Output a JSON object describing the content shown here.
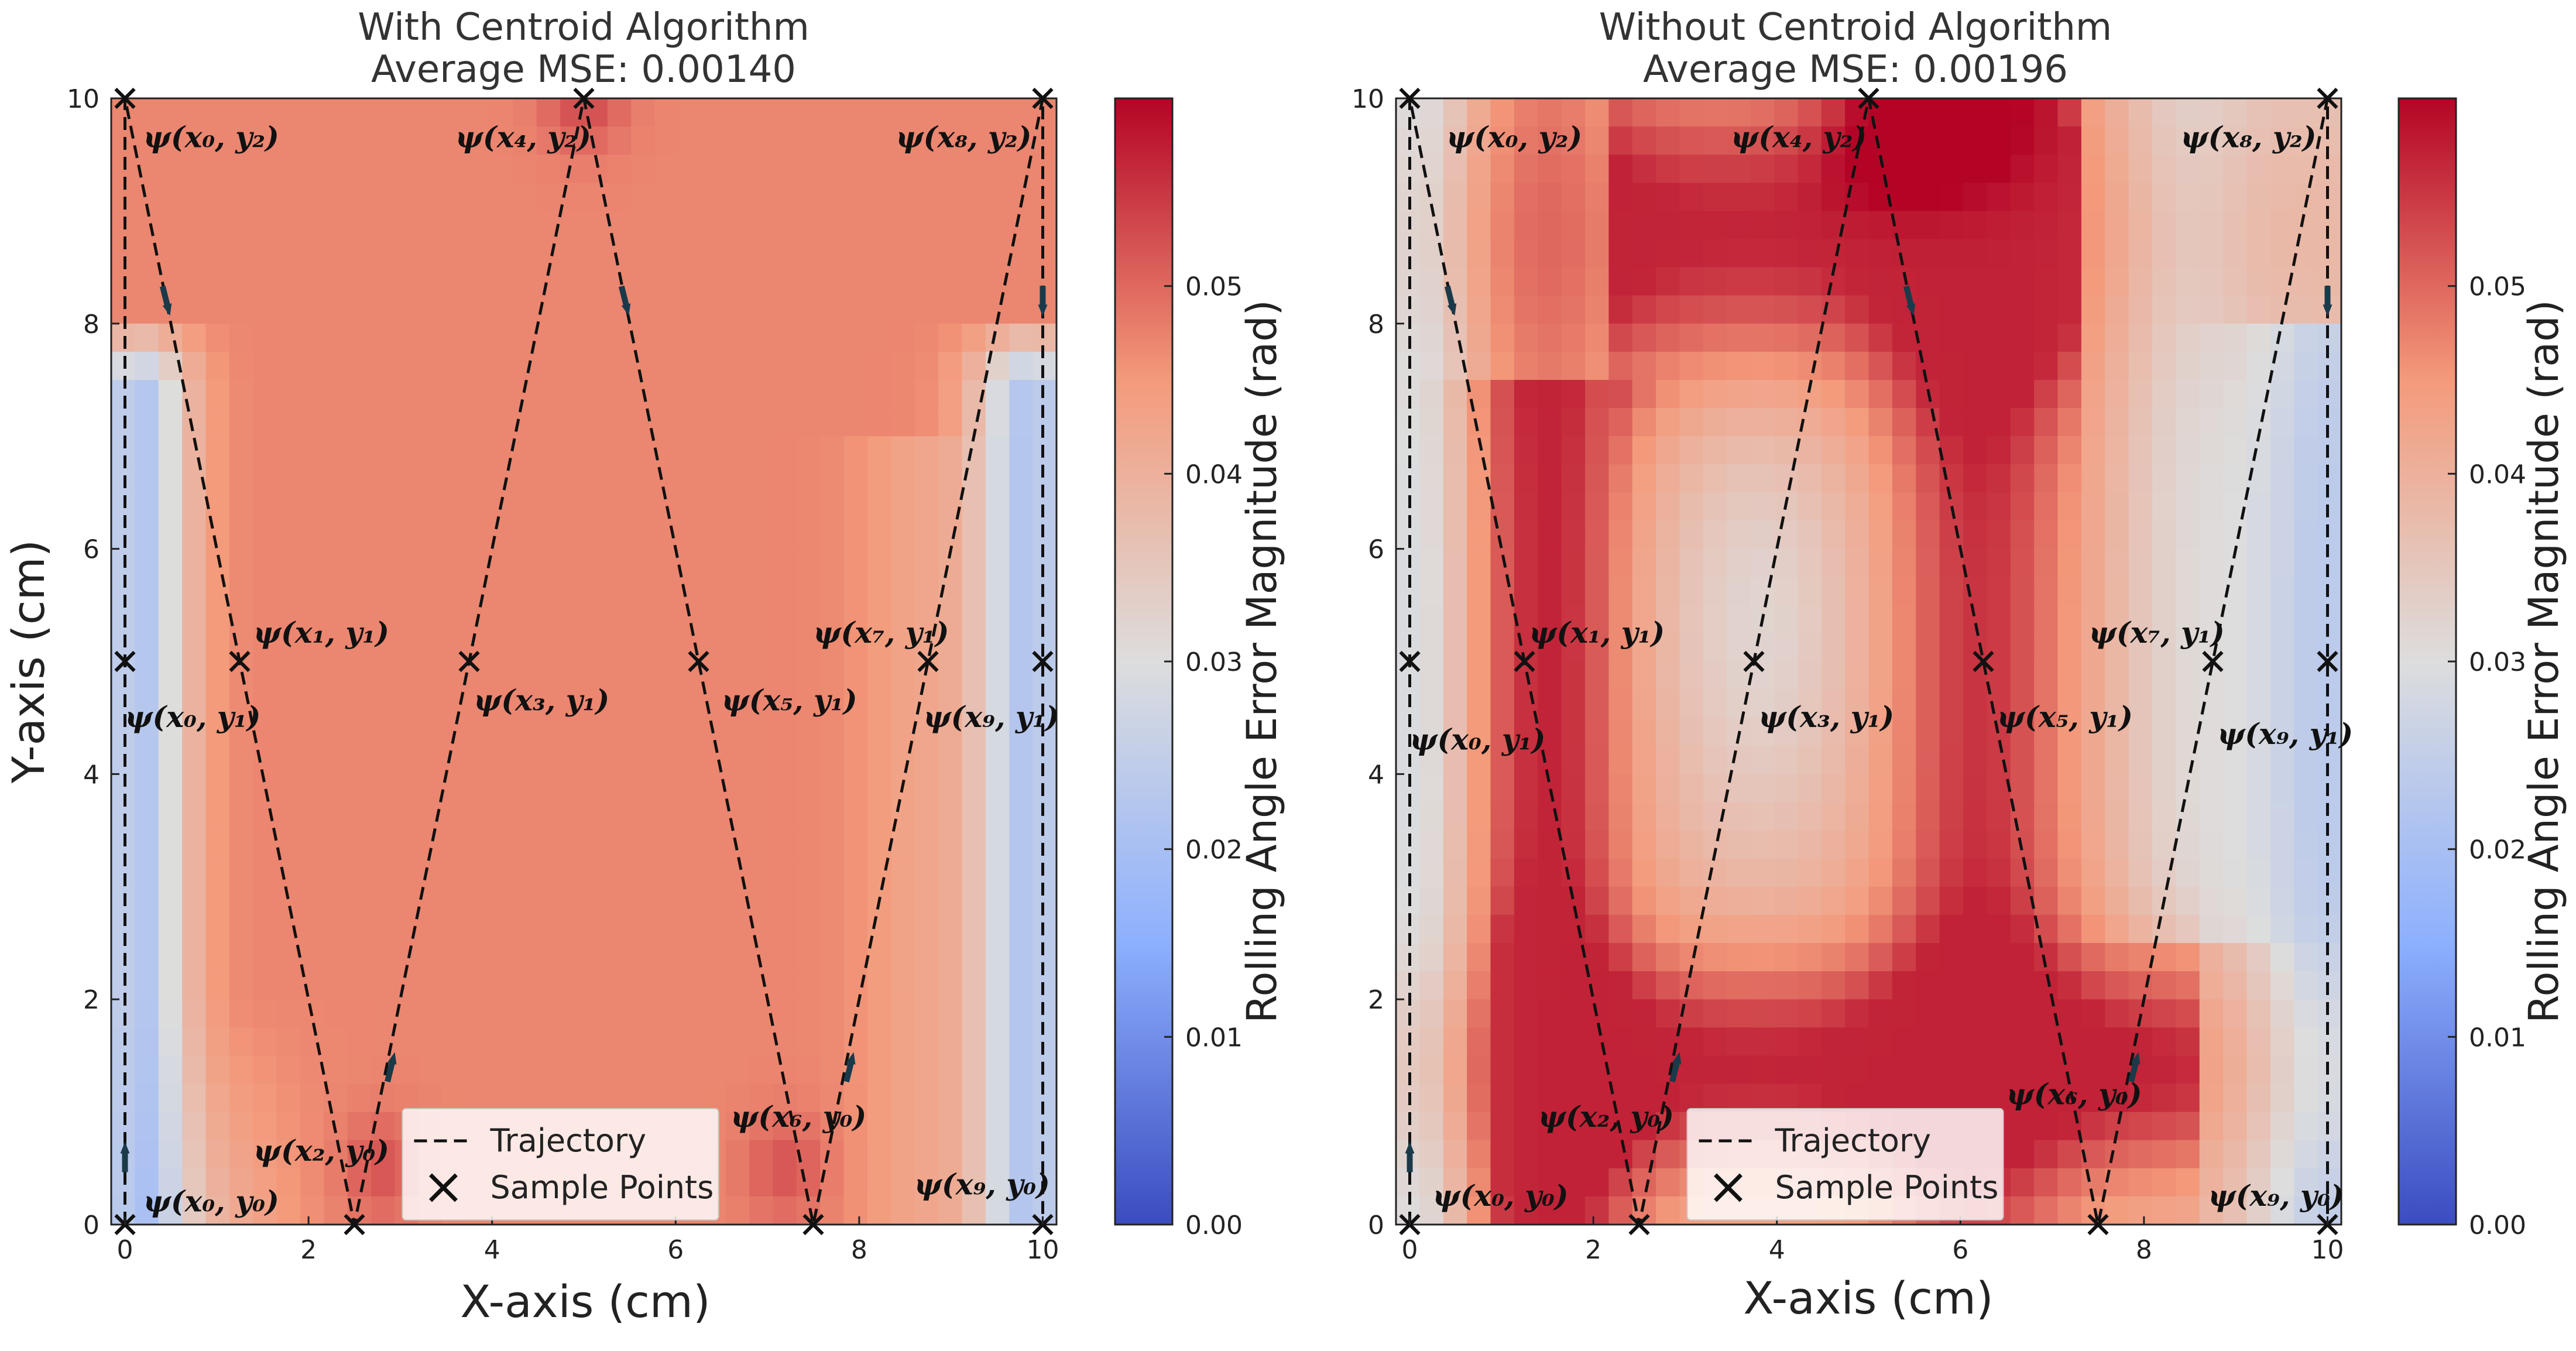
{
  "figure": {
    "colormap": {
      "name": "coolwarm",
      "stops": [
        {
          "t": 0.0,
          "color": "#3b4cc0"
        },
        {
          "t": 0.25,
          "color": "#8db0fe"
        },
        {
          "t": 0.5,
          "color": "#dddddd"
        },
        {
          "t": 0.75,
          "color": "#f49a7b"
        },
        {
          "t": 1.0,
          "color": "#b40426"
        }
      ]
    },
    "trajectory_color": "#111111",
    "arrow_color": "#1a3a4a"
  },
  "chart_data": [
    {
      "type": "heatmap",
      "title_line1": "With Centroid Algorithm",
      "title_line2": "Average MSE: 0.00140",
      "xlabel": "X-axis (cm)",
      "ylabel": "Y-axis  (cm)",
      "xlim": [
        0,
        10
      ],
      "ylim": [
        0,
        10
      ],
      "xticks": [
        "0",
        "2",
        "4",
        "6",
        "8",
        "10"
      ],
      "yticks": [
        "0",
        "2",
        "4",
        "6",
        "8",
        "10"
      ],
      "colorbar": {
        "label": "Rolling Angle Error Magnitude (rad)",
        "range": [
          0.0,
          0.06
        ],
        "ticks": [
          "0.00",
          "0.01",
          "0.02",
          "0.03",
          "0.04",
          "0.05"
        ]
      },
      "field": {
        "base": 0.047,
        "left_dip": 0.022,
        "right_dip": 0.022,
        "edge_dip_top_y": 7.5,
        "hot_spots": [
          {
            "x": 5.0,
            "y": 10.0,
            "v": 0.053
          },
          {
            "x": 2.8,
            "y": 0.5,
            "v": 0.052
          },
          {
            "x": 7.2,
            "y": 0.5,
            "v": 0.052
          }
        ]
      },
      "trajectory": {
        "name": "Trajectory",
        "points": [
          [
            0,
            0
          ],
          [
            0,
            10
          ],
          [
            2.5,
            0
          ],
          [
            5,
            10
          ],
          [
            7.5,
            0
          ],
          [
            10,
            10
          ],
          [
            10,
            0
          ]
        ]
      },
      "sample_points": {
        "name": "Sample Points",
        "points": [
          [
            0,
            0
          ],
          [
            0,
            5
          ],
          [
            0,
            10
          ],
          [
            1.25,
            5
          ],
          [
            2.5,
            0
          ],
          [
            3.75,
            5
          ],
          [
            5,
            10
          ],
          [
            6.25,
            5
          ],
          [
            7.5,
            0
          ],
          [
            8.75,
            5
          ],
          [
            10,
            0
          ],
          [
            10,
            5
          ],
          [
            10,
            10
          ]
        ]
      },
      "arrows": [
        {
          "x": 0.0,
          "y": 0.6,
          "dir": "up"
        },
        {
          "x": 0.45,
          "y": 8.2,
          "dir": "down"
        },
        {
          "x": 2.9,
          "y": 1.4,
          "dir": "up"
        },
        {
          "x": 5.45,
          "y": 8.2,
          "dir": "down"
        },
        {
          "x": 7.9,
          "y": 1.4,
          "dir": "up"
        },
        {
          "x": 10.0,
          "y": 8.2,
          "dir": "down"
        }
      ],
      "annotations": [
        {
          "text": "ψ(x₀, y₂)",
          "x": 0.2,
          "y": 9.65
        },
        {
          "text": "ψ(x₄, y₂)",
          "x": 3.6,
          "y": 9.65
        },
        {
          "text": "ψ(x₈, y₂)",
          "x": 8.4,
          "y": 9.65
        },
        {
          "text": "ψ(x₁, y₁)",
          "x": 1.4,
          "y": 5.25
        },
        {
          "text": "ψ(x₇, y₁)",
          "x": 7.5,
          "y": 5.25
        },
        {
          "text": "ψ(x₀, y₁)",
          "x": 0.0,
          "y": 4.5
        },
        {
          "text": "ψ(x₃, y₁)",
          "x": 3.8,
          "y": 4.65
        },
        {
          "text": "ψ(x₅, y₁)",
          "x": 6.5,
          "y": 4.65
        },
        {
          "text": "ψ(x₉, y₁)",
          "x": 8.7,
          "y": 4.5
        },
        {
          "text": "ψ(x₂, y₀)",
          "x": 1.4,
          "y": 0.65
        },
        {
          "text": "ψ(x₆, y₀)",
          "x": 6.6,
          "y": 0.95
        },
        {
          "text": "ψ(x₀, y₀)",
          "x": 0.2,
          "y": 0.2
        },
        {
          "text": "ψ(x₉, y₀)",
          "x": 8.6,
          "y": 0.35
        }
      ],
      "legend": {
        "position": "lower center",
        "entries": [
          "Trajectory",
          "Sample Points"
        ]
      }
    },
    {
      "type": "heatmap",
      "title_line1": "Without Centroid Algorithm",
      "title_line2": "Average MSE: 0.00196",
      "xlabel": "X-axis (cm)",
      "ylabel": "",
      "xlim": [
        0,
        10
      ],
      "ylim": [
        0,
        10
      ],
      "xticks": [
        "0",
        "2",
        "4",
        "6",
        "8",
        "10"
      ],
      "yticks": [
        "0",
        "2",
        "4",
        "6",
        "8",
        "10"
      ],
      "colorbar": {
        "label": "Rolling Angle Error Magnitude (rad)",
        "range": [
          0.0,
          0.06
        ],
        "ticks": [
          "0.00",
          "0.01",
          "0.02",
          "0.03",
          "0.04",
          "0.05"
        ]
      },
      "field": {
        "base": 0.038,
        "ring": true
      },
      "trajectory": {
        "name": "Trajectory",
        "points": [
          [
            0,
            0
          ],
          [
            0,
            10
          ],
          [
            2.5,
            0
          ],
          [
            5,
            10
          ],
          [
            7.5,
            0
          ],
          [
            10,
            10
          ],
          [
            10,
            0
          ]
        ]
      },
      "sample_points": {
        "name": "Sample Points",
        "points": [
          [
            0,
            0
          ],
          [
            0,
            5
          ],
          [
            0,
            10
          ],
          [
            1.25,
            5
          ],
          [
            2.5,
            0
          ],
          [
            3.75,
            5
          ],
          [
            5,
            10
          ],
          [
            6.25,
            5
          ],
          [
            7.5,
            0
          ],
          [
            8.75,
            5
          ],
          [
            10,
            0
          ],
          [
            10,
            5
          ],
          [
            10,
            10
          ]
        ]
      },
      "arrows": [
        {
          "x": 0.0,
          "y": 0.6,
          "dir": "up"
        },
        {
          "x": 0.45,
          "y": 8.2,
          "dir": "down"
        },
        {
          "x": 2.9,
          "y": 1.4,
          "dir": "up"
        },
        {
          "x": 5.45,
          "y": 8.2,
          "dir": "down"
        },
        {
          "x": 7.9,
          "y": 1.4,
          "dir": "up"
        },
        {
          "x": 10.0,
          "y": 8.2,
          "dir": "down"
        }
      ],
      "annotations": [
        {
          "text": "ψ(x₀, y₂)",
          "x": 0.4,
          "y": 9.65
        },
        {
          "text": "ψ(x₄, y₂)",
          "x": 3.5,
          "y": 9.65
        },
        {
          "text": "ψ(x₈, y₂)",
          "x": 8.4,
          "y": 9.65
        },
        {
          "text": "ψ(x₁, y₁)",
          "x": 1.3,
          "y": 5.25
        },
        {
          "text": "ψ(x₇, y₁)",
          "x": 7.4,
          "y": 5.25
        },
        {
          "text": "ψ(x₀, y₁)",
          "x": 0.0,
          "y": 4.3
        },
        {
          "text": "ψ(x₃, y₁)",
          "x": 3.8,
          "y": 4.5
        },
        {
          "text": "ψ(x₅, y₁)",
          "x": 6.4,
          "y": 4.5
        },
        {
          "text": "ψ(x₉, y₁)",
          "x": 8.8,
          "y": 4.35
        },
        {
          "text": "ψ(x₂, y₀)",
          "x": 1.4,
          "y": 0.95
        },
        {
          "text": "ψ(x₆, y₀)",
          "x": 6.5,
          "y": 1.15
        },
        {
          "text": "ψ(x₀, y₀)",
          "x": 0.25,
          "y": 0.25
        },
        {
          "text": "ψ(x₉, y₀)",
          "x": 8.7,
          "y": 0.25
        }
      ],
      "legend": {
        "position": "lower center",
        "entries": [
          "Trajectory",
          "Sample Points"
        ]
      }
    }
  ]
}
